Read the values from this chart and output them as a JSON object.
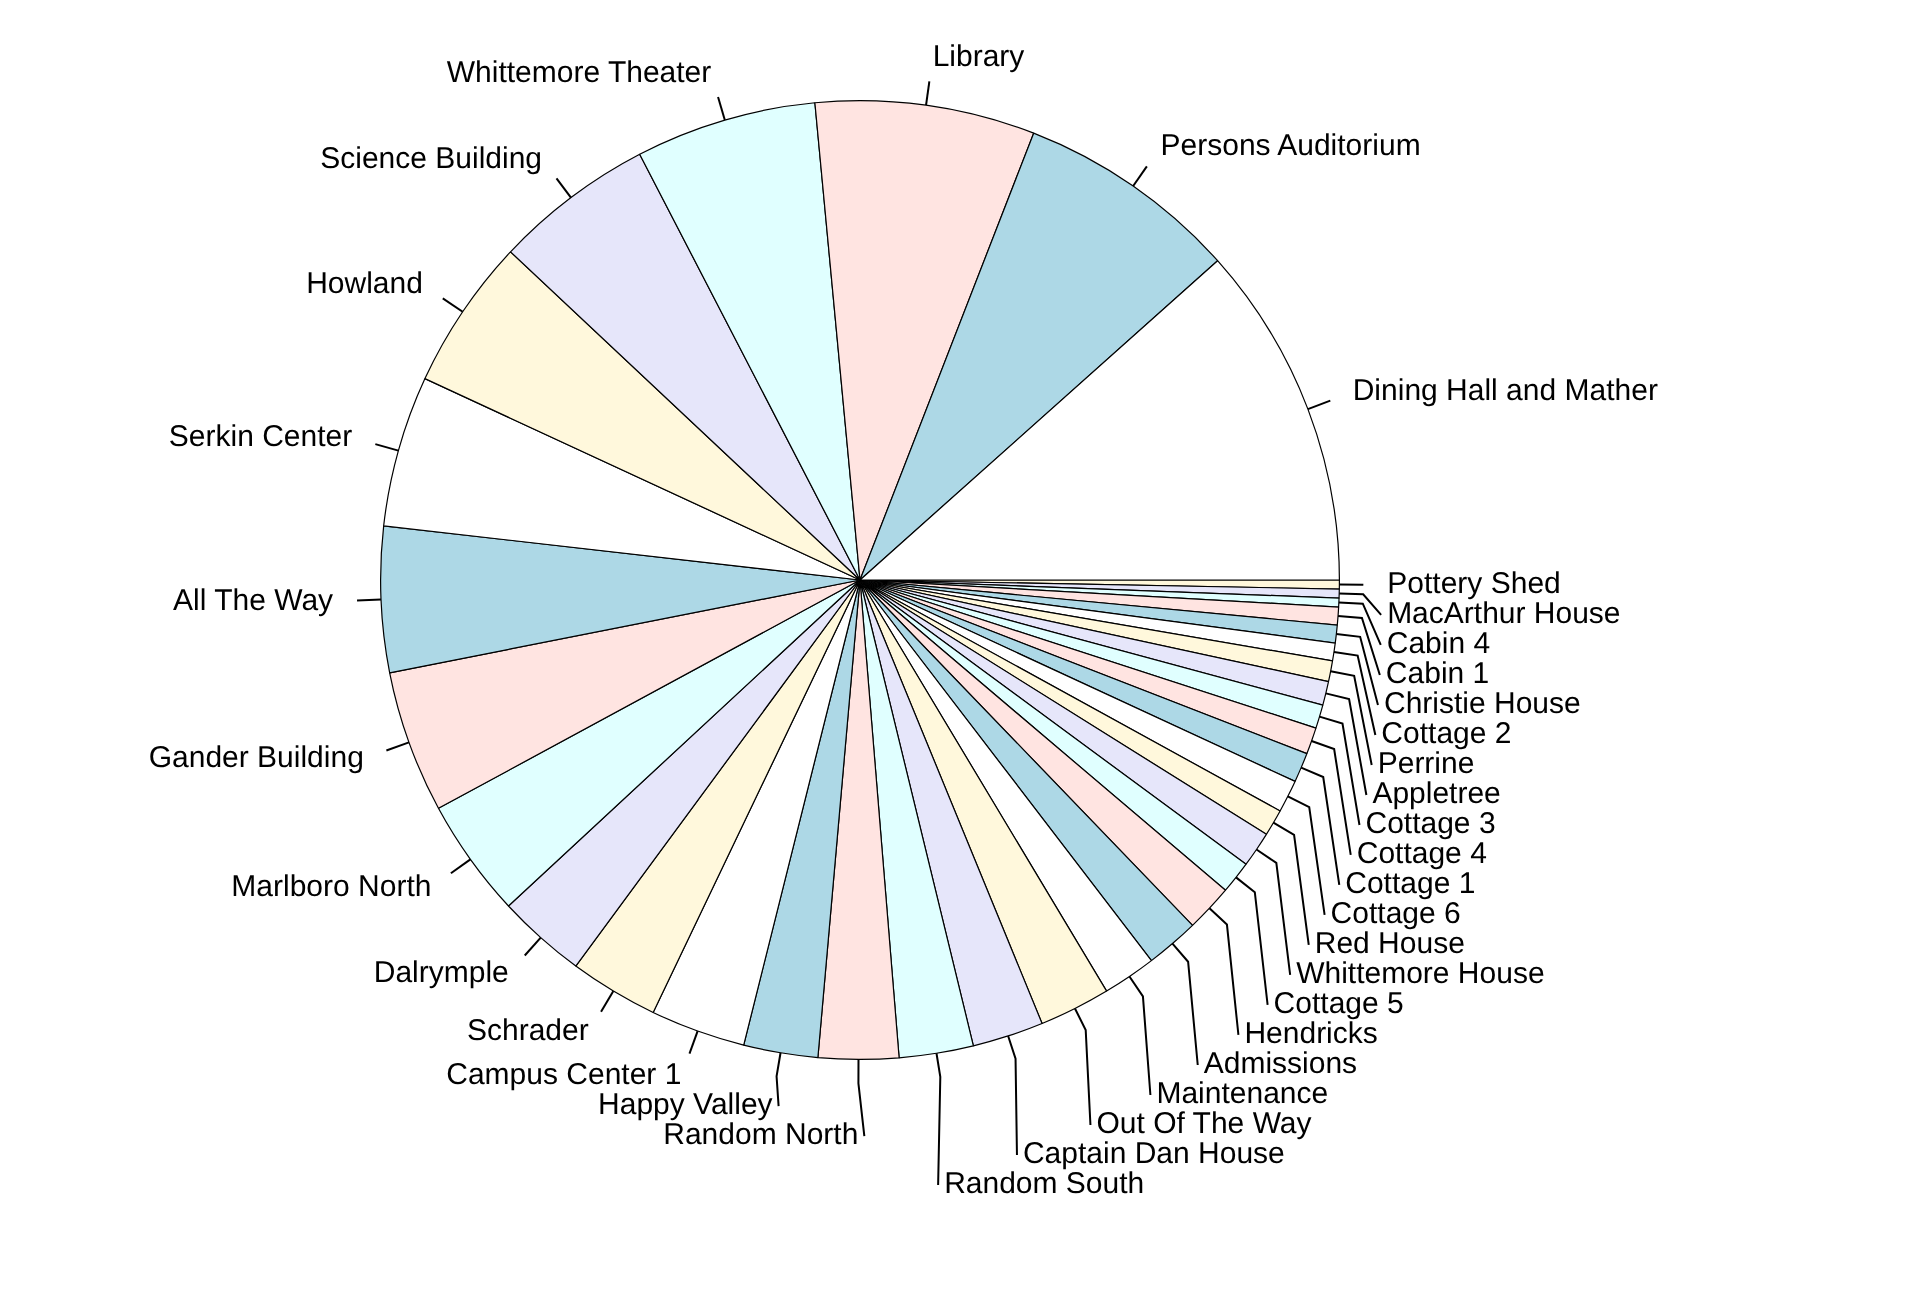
{
  "chart_data": {
    "type": "pie",
    "categories": [
      "Dining Hall and Mather",
      "Persons Auditorium",
      "Library",
      "Whittemore Theater",
      "Science Building",
      "Howland",
      "Serkin Center",
      "All The Way",
      "Gander Building",
      "Marlboro North",
      "Dalrymple",
      "Schrader",
      "Campus Center 1",
      "Happy Valley",
      "Random North",
      "Random South",
      "Captain Dan House",
      "Out Of The Way",
      "Maintenance",
      "Admissions",
      "Hendricks",
      "Cottage 5",
      "Whittemore House",
      "Red House",
      "Cottage 6",
      "Cottage 1",
      "Cottage 4",
      "Cottage 3",
      "Appletree",
      "Perrine",
      "Cottage 2",
      "Christie House",
      "Cabin 1",
      "Cabin 4",
      "MacArthur House",
      "Pottery Shed"
    ],
    "values": [
      11.6,
      7.5,
      7.4,
      6.1,
      5.4,
      5.1,
      5.1,
      4.9,
      4.8,
      4.0,
      3.0,
      3.0,
      3.2,
      2.5,
      2.7,
      2.5,
      2.4,
      2.4,
      1.8,
      1.8,
      1.6,
      1.1,
      1.2,
      0.9,
      1.1,
      1.0,
      0.9,
      0.8,
      0.8,
      0.7,
      0.6,
      0.6,
      0.6,
      0.3,
      0.3,
      0.3
    ],
    "colors": [
      "#ffffff",
      "#add8e6",
      "#ffe4e1",
      "#e0ffff",
      "#e6e6fa",
      "#fff8dc",
      "#ffffff",
      "#add8e6",
      "#ffe4e1",
      "#e0ffff",
      "#e6e6fa",
      "#fff8dc",
      "#ffffff",
      "#add8e6",
      "#ffe4e1",
      "#e0ffff",
      "#e6e6fa",
      "#fff8dc",
      "#ffffff",
      "#add8e6",
      "#ffe4e1",
      "#e0ffff",
      "#e6e6fa",
      "#fff8dc",
      "#ffffff",
      "#add8e6",
      "#ffe4e1",
      "#e0ffff",
      "#e6e6fa",
      "#fff8dc",
      "#ffffff",
      "#add8e6",
      "#ffe4e1",
      "#e0ffff",
      "#e6e6fa",
      "#fff8dc"
    ]
  }
}
